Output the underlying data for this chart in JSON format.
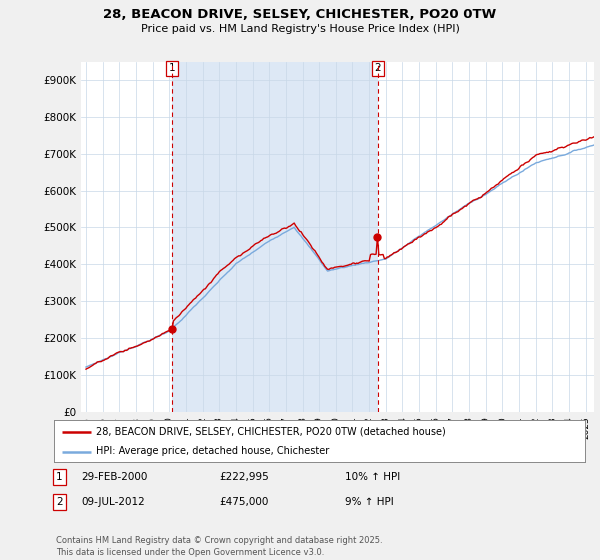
{
  "title": "28, BEACON DRIVE, SELSEY, CHICHESTER, PO20 0TW",
  "subtitle": "Price paid vs. HM Land Registry's House Price Index (HPI)",
  "ylim": [
    0,
    950000
  ],
  "yticks": [
    0,
    100000,
    200000,
    300000,
    400000,
    500000,
    600000,
    700000,
    800000,
    900000
  ],
  "ytick_labels": [
    "£0",
    "£100K",
    "£200K",
    "£300K",
    "£400K",
    "£500K",
    "£600K",
    "£700K",
    "£800K",
    "£900K"
  ],
  "bg_color": "#f0f0f0",
  "plot_bg_color": "#ffffff",
  "red_line_color": "#cc0000",
  "blue_line_color": "#7aaadd",
  "vline_color": "#cc0000",
  "shade_color": "#dde8f5",
  "purchase1_year": 2000.16,
  "purchase1_price": 222995,
  "purchase1_label": "1",
  "purchase1_date": "29-FEB-2000",
  "purchase1_price_str": "£222,995",
  "purchase1_hpi": "10% ↑ HPI",
  "purchase2_year": 2012.52,
  "purchase2_price": 475000,
  "purchase2_label": "2",
  "purchase2_date": "09-JUL-2012",
  "purchase2_price_str": "£475,000",
  "purchase2_hpi": "9% ↑ HPI",
  "legend_line1": "28, BEACON DRIVE, SELSEY, CHICHESTER, PO20 0TW (detached house)",
  "legend_line2": "HPI: Average price, detached house, Chichester",
  "footer": "Contains HM Land Registry data © Crown copyright and database right 2025.\nThis data is licensed under the Open Government Licence v3.0.",
  "xstart": 1994.7,
  "xend": 2025.5
}
